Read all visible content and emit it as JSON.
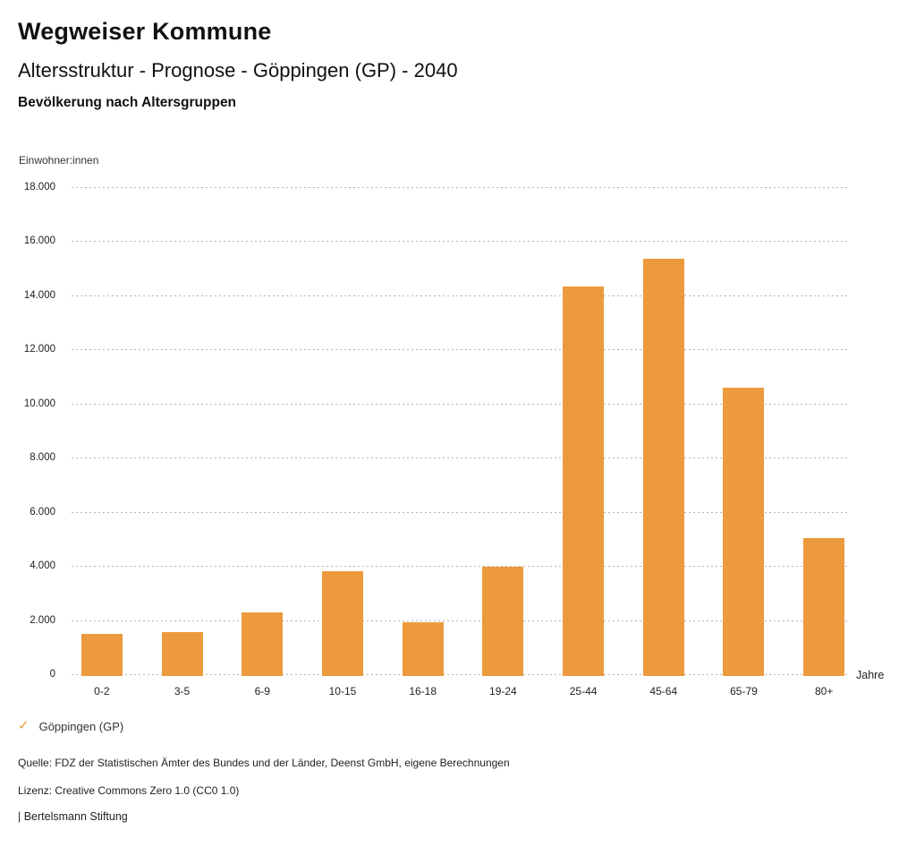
{
  "header": {
    "app_title": "Wegweiser Kommune",
    "subtitle": "Altersstruktur - Prognose - Göppingen (GP) - 2040",
    "chart_heading": "Bevölkerung nach Altersgruppen"
  },
  "chart_data": {
    "type": "bar",
    "title": "Bevölkerung nach Altersgruppen",
    "unit_label": "Einwohner:innen",
    "xlabel": "Jahre",
    "ylabel": "Einwohner:innen",
    "categories": [
      "0-2",
      "3-5",
      "6-9",
      "10-15",
      "16-18",
      "19-24",
      "25-44",
      "45-64",
      "65-79",
      "80+"
    ],
    "series": [
      {
        "name": "Göppingen (GP)",
        "values": [
          1540,
          1630,
          2360,
          3850,
          1990,
          4020,
          14370,
          15390,
          10640,
          5080
        ]
      }
    ],
    "ylim": [
      0,
      18000
    ],
    "ytick_step": 2000,
    "ytick_labels": [
      "0",
      "2.000",
      "4.000",
      "6.000",
      "8.000",
      "10.000",
      "12.000",
      "14.000",
      "16.000",
      "18.000"
    ],
    "grid": "horizontal-dotted",
    "legend_position": "bottom-left",
    "bar_color": "#EC9A3D"
  },
  "legend": {
    "marker": "✓",
    "label": "Göppingen (GP)"
  },
  "footer": {
    "source": "Quelle: FDZ der Statistischen Ämter des Bundes und der Länder, Deenst GmbH, eigene Berechnungen",
    "license": "Lizenz: Creative Commons Zero 1.0 (CC0 1.0)",
    "attribution": "| Bertelsmann Stiftung"
  },
  "colors": {
    "accent": "#EC9A3D",
    "grid": "#b4b4b4",
    "text": "#1a1a1a",
    "muted": "#333333"
  }
}
